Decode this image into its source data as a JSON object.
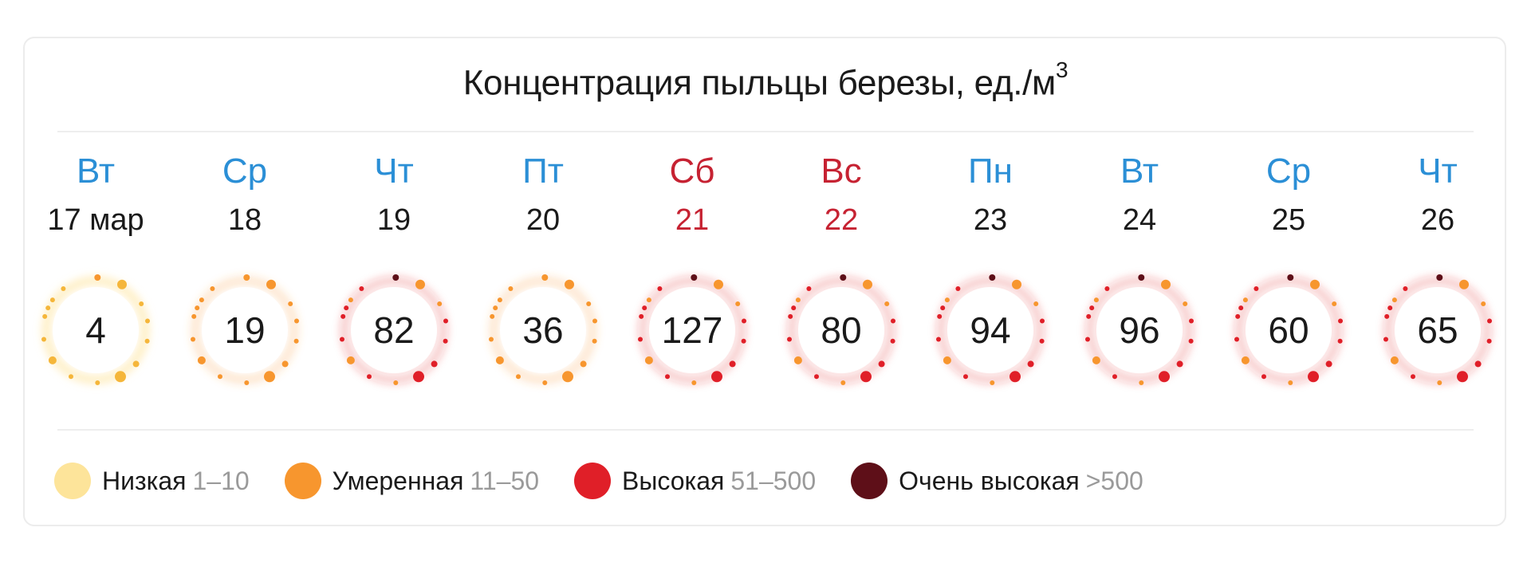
{
  "title": "Концентрация пыльцы березы, ед./м",
  "title_sup": "3",
  "colors": {
    "weekday": "#2b8fd6",
    "weekend": "#c62232",
    "low": "#fde49a",
    "moderate": "#f7962e",
    "high": "#e01f28",
    "very_high": "#5e0f18"
  },
  "chart_data": {
    "type": "table",
    "days": [
      {
        "dow": "Вт",
        "date": "17 мар",
        "value": 4,
        "level": "low",
        "weekend": false
      },
      {
        "dow": "Ср",
        "date": "18",
        "value": 19,
        "level": "moderate",
        "weekend": false
      },
      {
        "dow": "Чт",
        "date": "19",
        "value": 82,
        "level": "high",
        "weekend": false
      },
      {
        "dow": "Пт",
        "date": "20",
        "value": 36,
        "level": "moderate",
        "weekend": false
      },
      {
        "dow": "Сб",
        "date": "21",
        "value": 127,
        "level": "high",
        "weekend": true
      },
      {
        "dow": "Вс",
        "date": "22",
        "value": 80,
        "level": "high",
        "weekend": true
      },
      {
        "dow": "Пн",
        "date": "23",
        "value": 94,
        "level": "high",
        "weekend": false
      },
      {
        "dow": "Вт",
        "date": "24",
        "value": 96,
        "level": "high",
        "weekend": false
      },
      {
        "dow": "Ср",
        "date": "25",
        "value": 60,
        "level": "high",
        "weekend": false
      },
      {
        "dow": "Чт",
        "date": "26",
        "value": 65,
        "level": "high",
        "weekend": false
      }
    ]
  },
  "legend": [
    {
      "name": "Низкая",
      "range": "1–10",
      "level": "low"
    },
    {
      "name": "Умеренная",
      "range": "11–50",
      "level": "moderate"
    },
    {
      "name": "Высокая",
      "range": "51–500",
      "level": "high"
    },
    {
      "name": "Очень высокая",
      "range": ">500",
      "level": "very_high"
    }
  ]
}
